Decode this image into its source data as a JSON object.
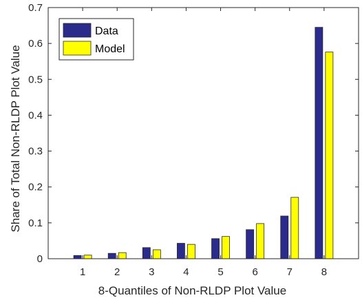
{
  "chart_data": {
    "type": "bar",
    "categories": [
      "1",
      "2",
      "3",
      "4",
      "5",
      "6",
      "7",
      "8"
    ],
    "series": [
      {
        "name": "Data",
        "color": "#2b2b8c",
        "values": [
          0.009,
          0.015,
          0.031,
          0.043,
          0.056,
          0.081,
          0.119,
          0.645
        ]
      },
      {
        "name": "Model",
        "color": "#ffff00",
        "values": [
          0.01,
          0.017,
          0.025,
          0.04,
          0.062,
          0.098,
          0.171,
          0.576
        ]
      }
    ],
    "title": "",
    "xlabel": "8-Quantiles of Non-RLDP Plot Value",
    "ylabel": "Share of Total Non-RLDP Plot Value",
    "ylim": [
      0,
      0.7
    ],
    "yticks": [
      "0",
      "0.1",
      "0.2",
      "0.3",
      "0.4",
      "0.5",
      "0.6",
      "0.7"
    ],
    "grid": false,
    "legend_position": "top-left"
  }
}
